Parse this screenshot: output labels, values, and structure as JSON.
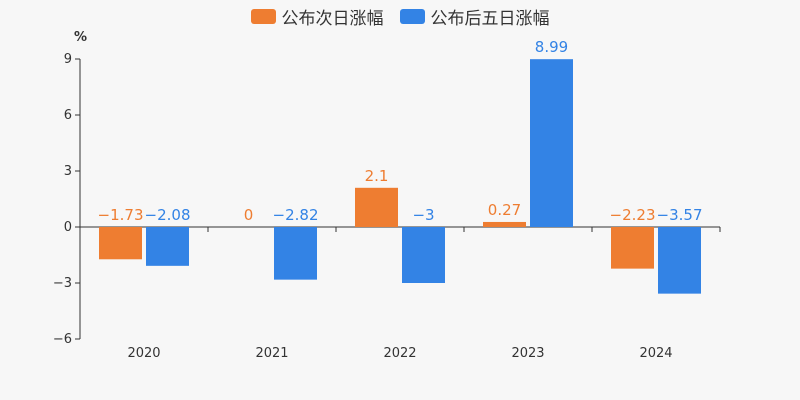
{
  "chart_data": {
    "type": "bar",
    "categories": [
      "2020",
      "2021",
      "2022",
      "2023",
      "2024"
    ],
    "series": [
      {
        "name": "公布次日涨幅",
        "color": "#ee7d31",
        "values": [
          -1.73,
          0,
          2.1,
          0.27,
          -2.23
        ],
        "labels": [
          "−1.73",
          "0",
          "2.1",
          "0.27",
          "−2.23"
        ]
      },
      {
        "name": "公布后五日涨幅",
        "color": "#3383e5",
        "values": [
          -2.08,
          -2.82,
          -3,
          8.99,
          -3.57
        ],
        "labels": [
          "−2.08",
          "−2.82",
          "−3",
          "8.99",
          "−3.57"
        ]
      }
    ],
    "yunit": "%",
    "yticks": [
      -6,
      -3,
      0,
      3,
      6,
      9
    ],
    "ytick_labels": [
      "−6",
      "−3",
      "0",
      "3",
      "6",
      "9"
    ],
    "ylim": [
      -6,
      9
    ],
    "legend_position": "top-center",
    "grid": false
  }
}
